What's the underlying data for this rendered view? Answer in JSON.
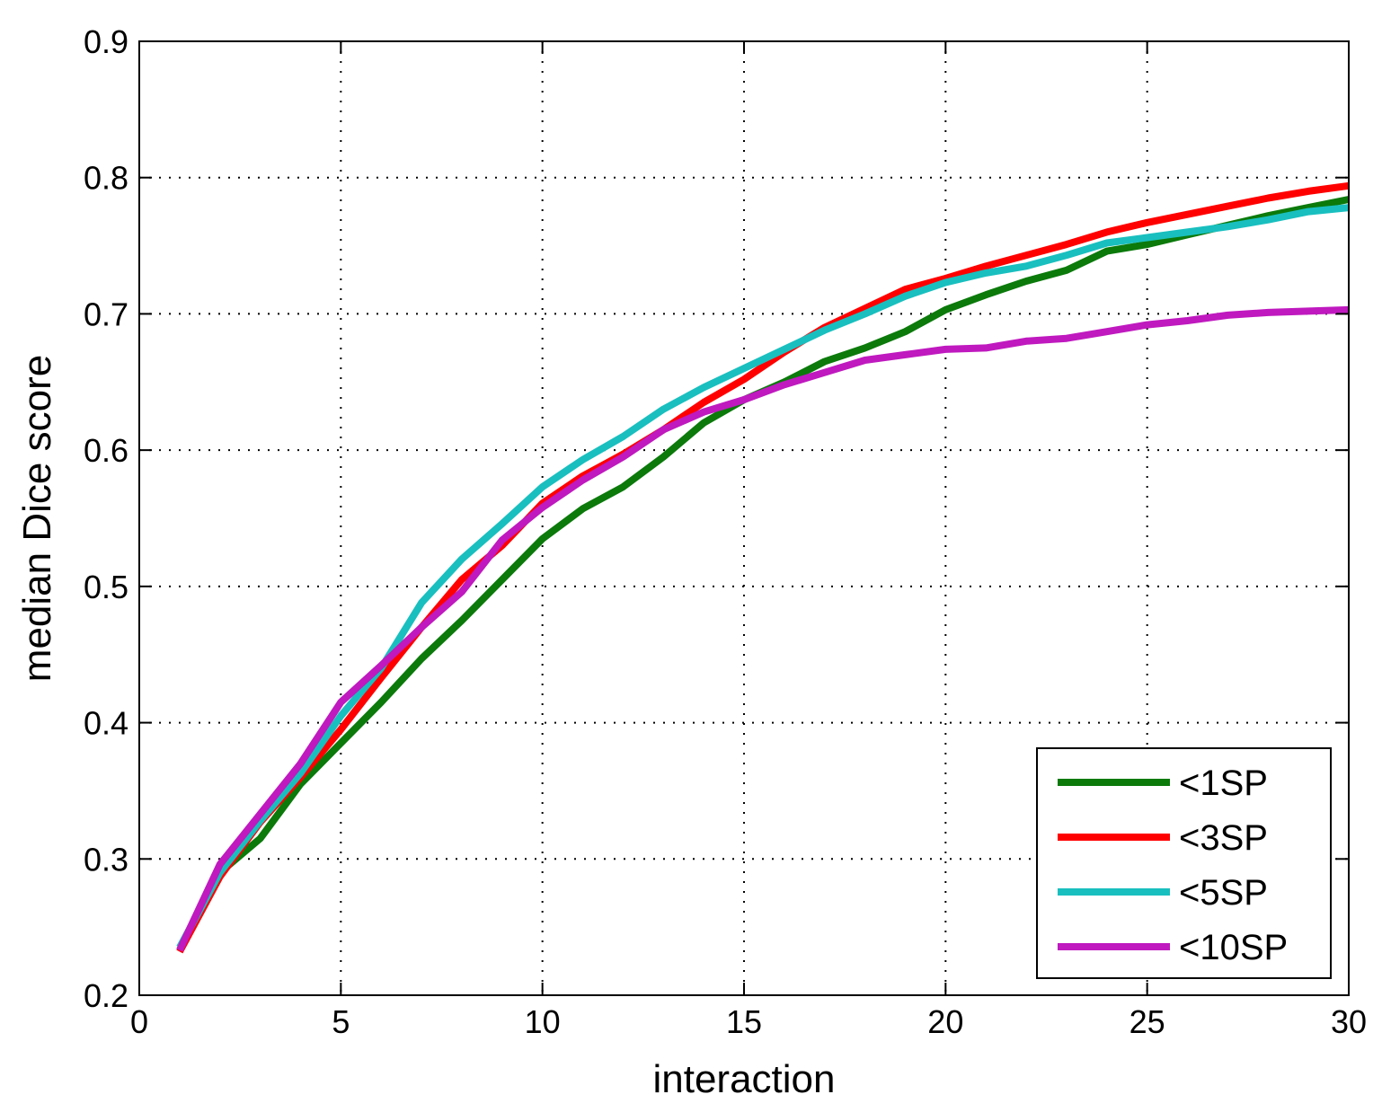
{
  "chart_data": {
    "type": "line",
    "title": "",
    "xlabel": "interaction",
    "ylabel": "median Dice score",
    "xlim": [
      0,
      30
    ],
    "ylim": [
      0.2,
      0.9
    ],
    "xticks": [
      0,
      5,
      10,
      15,
      20,
      25,
      30
    ],
    "yticks": [
      0.2,
      0.3,
      0.4,
      0.5,
      0.6,
      0.7,
      0.8,
      0.9
    ],
    "xtick_labels": [
      "0",
      "5",
      "10",
      "15",
      "20",
      "25",
      "30"
    ],
    "ytick_labels": [
      "0.2",
      "0.3",
      "0.4",
      "0.5",
      "0.6",
      "0.7",
      "0.8",
      "0.9"
    ],
    "grid": true,
    "legend_position": "bottom-right",
    "x": [
      1,
      2,
      3,
      4,
      5,
      6,
      7,
      8,
      9,
      10,
      11,
      12,
      13,
      14,
      15,
      16,
      17,
      18,
      19,
      20,
      21,
      22,
      23,
      24,
      25,
      26,
      27,
      28,
      29,
      30
    ],
    "series": [
      {
        "name": "<1SP",
        "color": "#0b7a0b",
        "values": [
          0.233,
          0.29,
          0.315,
          0.355,
          0.385,
          0.415,
          0.447,
          0.475,
          0.505,
          0.535,
          0.557,
          0.573,
          0.595,
          0.62,
          0.637,
          0.65,
          0.665,
          0.675,
          0.687,
          0.703,
          0.714,
          0.724,
          0.732,
          0.746,
          0.751,
          0.758,
          0.765,
          0.772,
          0.778,
          0.784
        ]
      },
      {
        "name": "<3SP",
        "color": "#ff0000",
        "values": [
          0.232,
          0.287,
          0.327,
          0.36,
          0.395,
          0.433,
          0.47,
          0.505,
          0.53,
          0.561,
          0.581,
          0.597,
          0.615,
          0.635,
          0.652,
          0.672,
          0.69,
          0.704,
          0.718,
          0.726,
          0.735,
          0.743,
          0.751,
          0.76,
          0.767,
          0.773,
          0.779,
          0.785,
          0.79,
          0.794
        ]
      },
      {
        "name": "<5SP",
        "color": "#19bfbf",
        "values": [
          0.235,
          0.29,
          0.328,
          0.363,
          0.405,
          0.44,
          0.488,
          0.52,
          0.546,
          0.573,
          0.593,
          0.61,
          0.63,
          0.646,
          0.66,
          0.674,
          0.688,
          0.7,
          0.713,
          0.723,
          0.73,
          0.735,
          0.743,
          0.752,
          0.756,
          0.76,
          0.764,
          0.769,
          0.775,
          0.778
        ]
      },
      {
        "name": "<10SP",
        "color": "#bf19bf",
        "values": [
          0.233,
          0.296,
          0.333,
          0.37,
          0.415,
          0.442,
          0.47,
          0.496,
          0.534,
          0.558,
          0.578,
          0.595,
          0.615,
          0.628,
          0.637,
          0.648,
          0.657,
          0.666,
          0.67,
          0.674,
          0.675,
          0.68,
          0.682,
          0.687,
          0.692,
          0.695,
          0.699,
          0.701,
          0.702,
          0.703
        ]
      }
    ]
  }
}
